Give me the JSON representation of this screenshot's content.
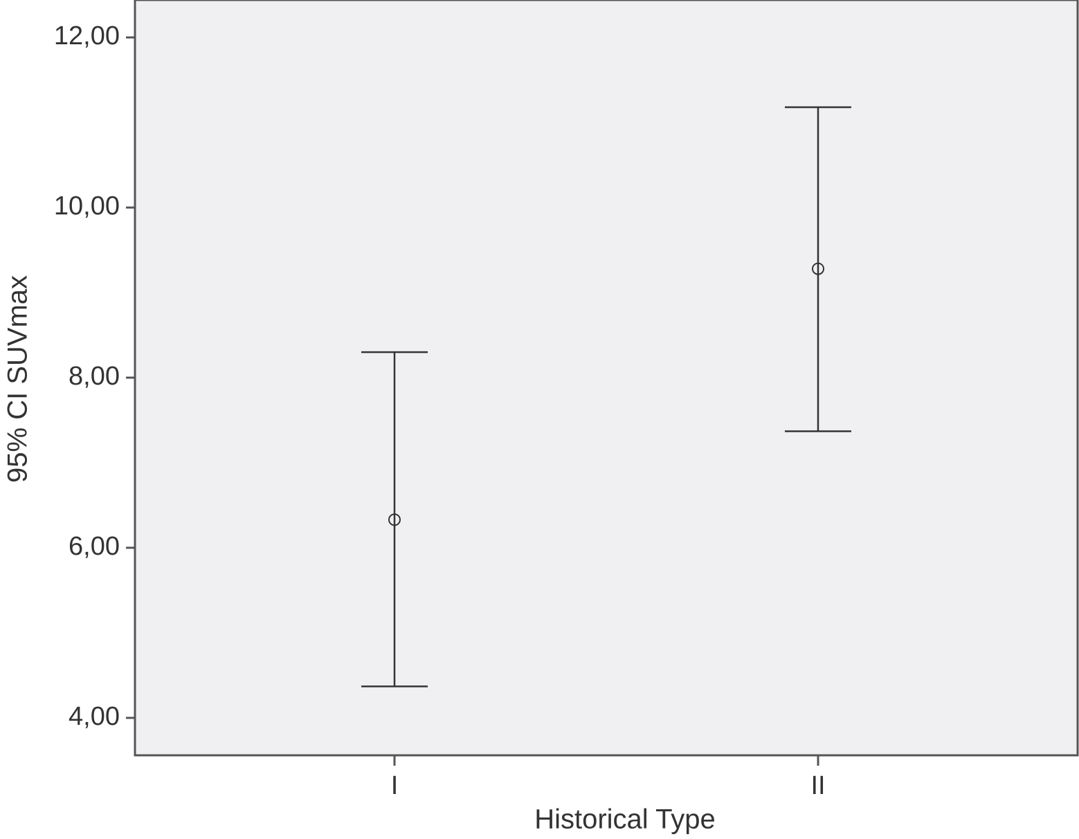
{
  "chart_data": {
    "type": "errorbar",
    "x_label": "Historical Type",
    "y_label": "95% CI SUVmax",
    "categories": [
      "I",
      "II"
    ],
    "values": [
      6.33,
      9.28
    ],
    "lower": [
      4.37,
      7.37
    ],
    "upper": [
      8.3,
      11.18
    ],
    "color": "#333333",
    "background": "#f0f0f2",
    "ylim": [
      3.56,
      12.44
    ],
    "yticks": [
      {
        "value": 4,
        "label": "4,00"
      },
      {
        "value": 6,
        "label": "6,00"
      },
      {
        "value": 8,
        "label": "8,00"
      },
      {
        "value": 10,
        "label": "10,00"
      },
      {
        "value": 12,
        "label": "12,00"
      }
    ]
  }
}
